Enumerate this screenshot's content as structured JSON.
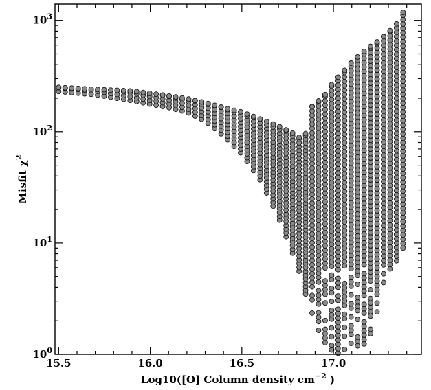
{
  "chart_data": {
    "type": "scatter",
    "title": "",
    "xlabel": "Log10([O] Column density cm",
    "xlabel_exponent": "−2",
    "xlabel_close": " )",
    "ylabel": "Misfit χ",
    "ylabel_exponent": "2",
    "xlim": [
      15.48,
      17.48
    ],
    "ylim": [
      1,
      1400
    ],
    "yscale": "log",
    "grid": false,
    "legend": "none",
    "marker_color": "#8a8a8a",
    "marker_edge_color": "#1a1a1a",
    "x_ticks": [
      {
        "value": 15.5,
        "label": "15.5"
      },
      {
        "value": 16.0,
        "label": "16.0"
      },
      {
        "value": 16.5,
        "label": "16.5"
      },
      {
        "value": 17.0,
        "label": "17.0"
      }
    ],
    "y_ticks": [
      {
        "value": 1,
        "base": "10",
        "exp": "0"
      },
      {
        "value": 10,
        "base": "10",
        "exp": "1"
      },
      {
        "value": 100,
        "base": "10",
        "exp": "2"
      },
      {
        "value": 1000,
        "base": "10",
        "exp": "3"
      }
    ],
    "column_x_range": [
      15.5,
      17.38
    ],
    "column_count": 54,
    "column_min": [
      [
        15.5,
        230
      ],
      [
        15.7,
        215
      ],
      [
        15.9,
        190
      ],
      [
        16.1,
        165
      ],
      [
        16.2,
        150
      ],
      [
        16.3,
        125
      ],
      [
        16.4,
        92
      ],
      [
        16.5,
        63
      ],
      [
        16.6,
        37
      ],
      [
        16.7,
        17
      ],
      [
        16.8,
        6.5
      ],
      [
        16.83,
        4.5
      ],
      [
        16.88,
        2.2
      ],
      [
        16.95,
        1.3
      ],
      [
        17.0,
        1.05
      ],
      [
        17.05,
        1.0
      ],
      [
        17.1,
        1.05
      ],
      [
        17.18,
        1.15
      ],
      [
        17.25,
        2.8
      ],
      [
        17.3,
        5.0
      ],
      [
        17.38,
        9.0
      ]
    ],
    "column_max": [
      [
        15.5,
        250
      ],
      [
        15.7,
        240
      ],
      [
        15.9,
        232
      ],
      [
        16.1,
        210
      ],
      [
        16.2,
        198
      ],
      [
        16.3,
        182
      ],
      [
        16.4,
        164
      ],
      [
        16.5,
        150
      ],
      [
        16.6,
        130
      ],
      [
        16.7,
        112
      ],
      [
        16.8,
        93
      ],
      [
        16.84,
        80
      ],
      [
        16.87,
        160
      ],
      [
        16.95,
        210
      ],
      [
        17.0,
        280
      ],
      [
        17.05,
        340
      ],
      [
        17.1,
        420
      ],
      [
        17.15,
        500
      ],
      [
        17.2,
        580
      ],
      [
        17.25,
        660
      ],
      [
        17.3,
        780
      ],
      [
        17.35,
        950
      ],
      [
        17.38,
        1180
      ]
    ]
  }
}
